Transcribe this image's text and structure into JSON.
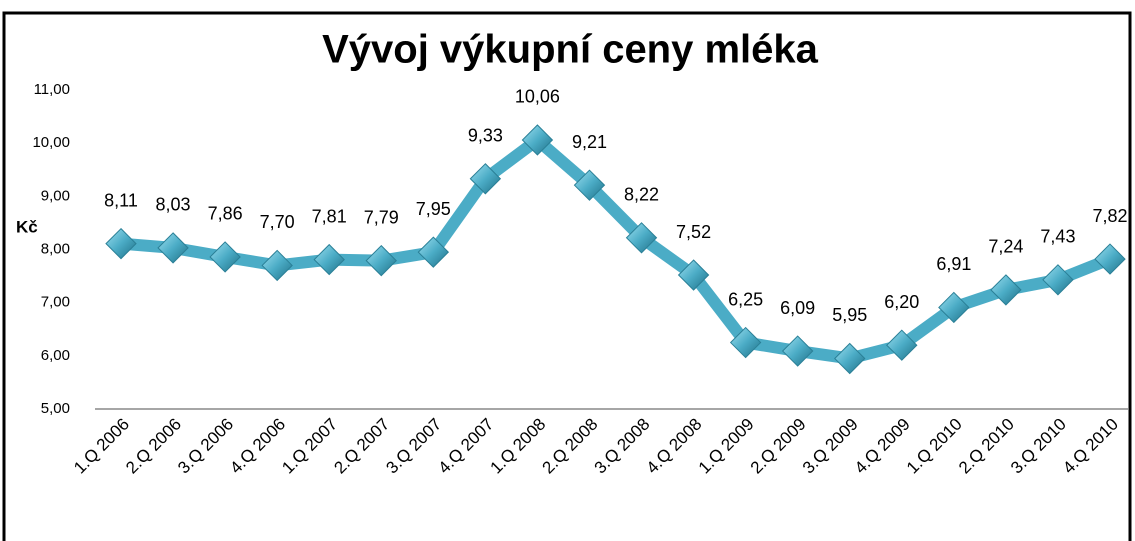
{
  "chart_data": {
    "type": "line",
    "title": "Vývoj výkupní ceny mléka",
    "ylabel": "Kč",
    "categories": [
      "1.Q 2006",
      "2.Q 2006",
      "3.Q 2006",
      "4.Q 2006",
      "1.Q 2007",
      "2.Q 2007",
      "3.Q 2007",
      "4.Q 2007",
      "1.Q 2008",
      "2.Q 2008",
      "3.Q 2008",
      "4.Q 2008",
      "1.Q 2009",
      "2.Q 2009",
      "3.Q 2009",
      "4.Q 2009",
      "1.Q 2010",
      "2.Q 2010",
      "3.Q 2010",
      "4.Q 2010"
    ],
    "values": [
      8.11,
      8.03,
      7.86,
      7.7,
      7.81,
      7.79,
      7.95,
      9.33,
      10.06,
      9.21,
      8.22,
      7.52,
      6.25,
      6.09,
      5.95,
      6.2,
      6.91,
      7.24,
      7.43,
      7.82
    ],
    "value_labels": [
      "8,11",
      "8,03",
      "7,86",
      "7,70",
      "7,81",
      "7,79",
      "7,95",
      "9,33",
      "10,06",
      "9,21",
      "8,22",
      "7,52",
      "6,25",
      "6,09",
      "5,95",
      "6,20",
      "6,91",
      "7,24",
      "7,43",
      "7,82"
    ],
    "color": "#4bacc6",
    "ylim": [
      5,
      11
    ],
    "yticks": [
      {
        "value": 5,
        "label": "5,00"
      },
      {
        "value": 6,
        "label": "6,00"
      },
      {
        "value": 7,
        "label": "7,00"
      },
      {
        "value": 8,
        "label": "8,00"
      },
      {
        "value": 9,
        "label": "9,00"
      },
      {
        "value": 10,
        "label": "10,00"
      },
      {
        "value": 11,
        "label": "11,00"
      }
    ],
    "grid": false
  }
}
